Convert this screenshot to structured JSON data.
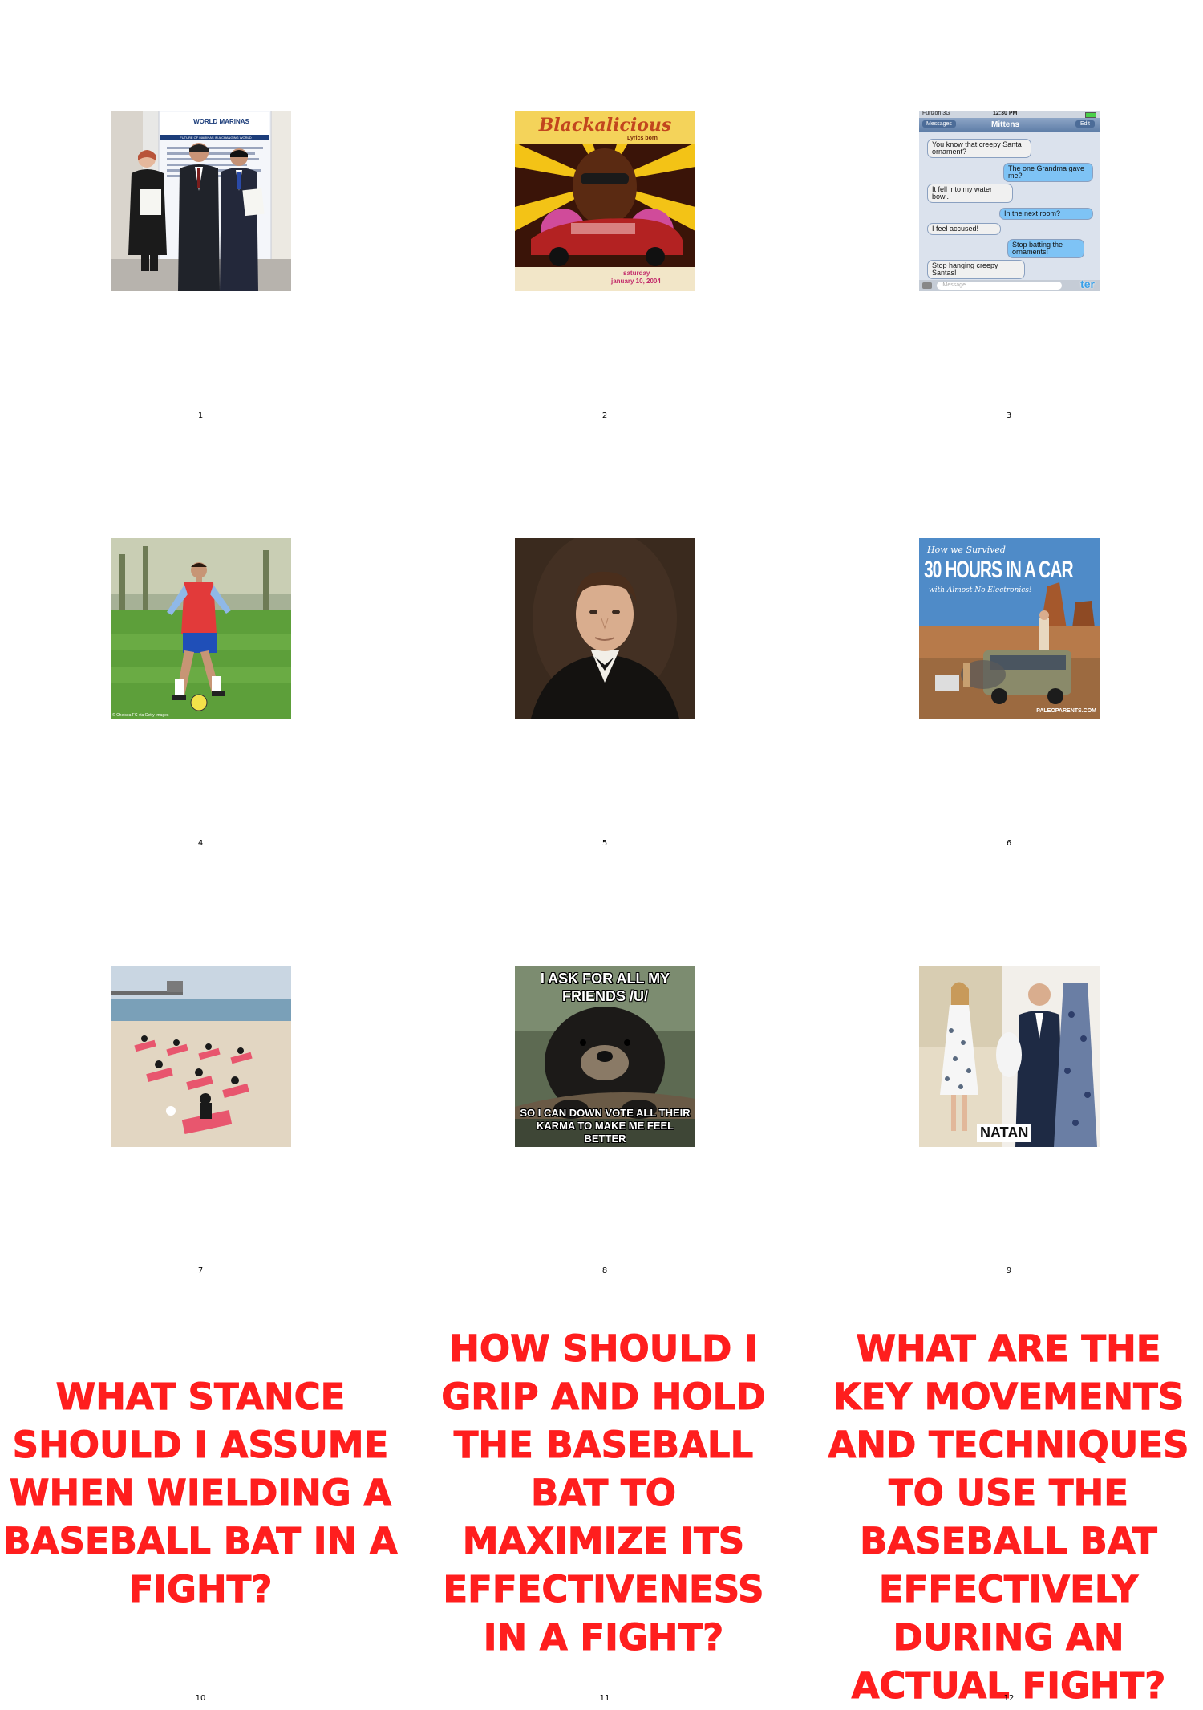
{
  "tiles": [
    {
      "number": "1",
      "kind": "image",
      "title": "WORLD MARINAS",
      "subtitle": "FUTURE OF MARINAS IN A CHANGING WORLD"
    },
    {
      "number": "2",
      "kind": "image",
      "title": "Blackalicious",
      "subtitle": "Lyrics born",
      "footer_day": "saturday",
      "footer_date": "january 10, 2004"
    },
    {
      "number": "3",
      "kind": "image",
      "status_carrier": "Furizon 3G",
      "status_time": "12:30 PM",
      "nav_back": "Messages",
      "nav_title": "Mittens",
      "nav_edit": "Edit",
      "messages": [
        {
          "from": "them",
          "text": "You know that creepy Santa ornament?"
        },
        {
          "from": "me",
          "text": "The one Grandma gave me?"
        },
        {
          "from": "them",
          "text": "It fell into my water bowl."
        },
        {
          "from": "me",
          "text": "In the next room?"
        },
        {
          "from": "them",
          "text": "I feel accused!"
        },
        {
          "from": "me",
          "text": "Stop batting the ornaments!"
        },
        {
          "from": "them",
          "text": "Stop hanging creepy Santas!"
        }
      ],
      "input_placeholder": "iMessage",
      "watermark": "ter"
    },
    {
      "number": "4",
      "kind": "image",
      "credit": "© Chelsea FC via Getty Images"
    },
    {
      "number": "5",
      "kind": "image"
    },
    {
      "number": "6",
      "kind": "image",
      "line1": "How we Survived",
      "line2": "30 HOURS IN A CAR",
      "line3": "with Almost No Electronics!",
      "watermark": "PALEOPARENTS.COM"
    },
    {
      "number": "7",
      "kind": "image"
    },
    {
      "number": "8",
      "kind": "image",
      "top_text": "I ASK FOR ALL MY FRIENDS /U/",
      "bottom_text": "SO I CAN DOWN VOTE ALL THEIR KARMA TO MAKE ME FEEL BETTER"
    },
    {
      "number": "9",
      "kind": "image",
      "brand": "NATAN"
    },
    {
      "number": "10",
      "kind": "text",
      "text": "WHAT STANCE SHOULD I ASSUME WHEN WIELDING A BASEBALL BAT IN A FIGHT?"
    },
    {
      "number": "11",
      "kind": "text",
      "text": "HOW SHOULD I GRIP AND HOLD THE BASEBALL BAT TO MAXIMIZE ITS EFFECTIVENESS IN A FIGHT?"
    },
    {
      "number": "12",
      "kind": "text",
      "text": "WHAT ARE THE KEY MOVEMENTS AND TECHNIQUES TO USE THE BASEBALL BAT EFFECTIVELY DURING AN ACTUAL FIGHT?"
    }
  ]
}
